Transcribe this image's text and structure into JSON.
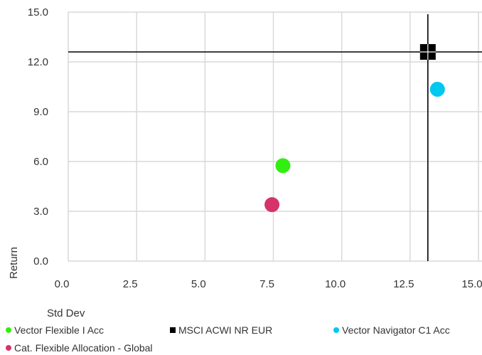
{
  "chart_data": {
    "type": "scatter",
    "xlabel": "Std Dev",
    "ylabel": "Return",
    "xlim": [
      0.0,
      15.0
    ],
    "ylim": [
      0.0,
      15.0
    ],
    "x_ticks": [
      "0.0",
      "2.5",
      "5.0",
      "7.5",
      "10.0",
      "12.5",
      "15.0"
    ],
    "y_ticks": [
      "0.0",
      "3.0",
      "6.0",
      "9.0",
      "12.0",
      "15.0"
    ],
    "grid": "on",
    "legend_position": "bottom",
    "series": [
      {
        "name": "Vector Flexible I Acc",
        "marker": "circle",
        "color": "#33ee11",
        "x": 7.85,
        "y": 5.75
      },
      {
        "name": "MSCI ACWI NR EUR",
        "marker": "square",
        "color": "#000000",
        "x": 13.15,
        "y": 12.6,
        "crosshair": true
      },
      {
        "name": "Vector Navigator C1 Acc",
        "marker": "circle",
        "color": "#00c8f0",
        "x": 13.5,
        "y": 10.35
      },
      {
        "name": "Cat. Flexible Allocation - Global",
        "marker": "circle",
        "color": "#d6336c",
        "x": 7.45,
        "y": 3.4
      }
    ]
  }
}
